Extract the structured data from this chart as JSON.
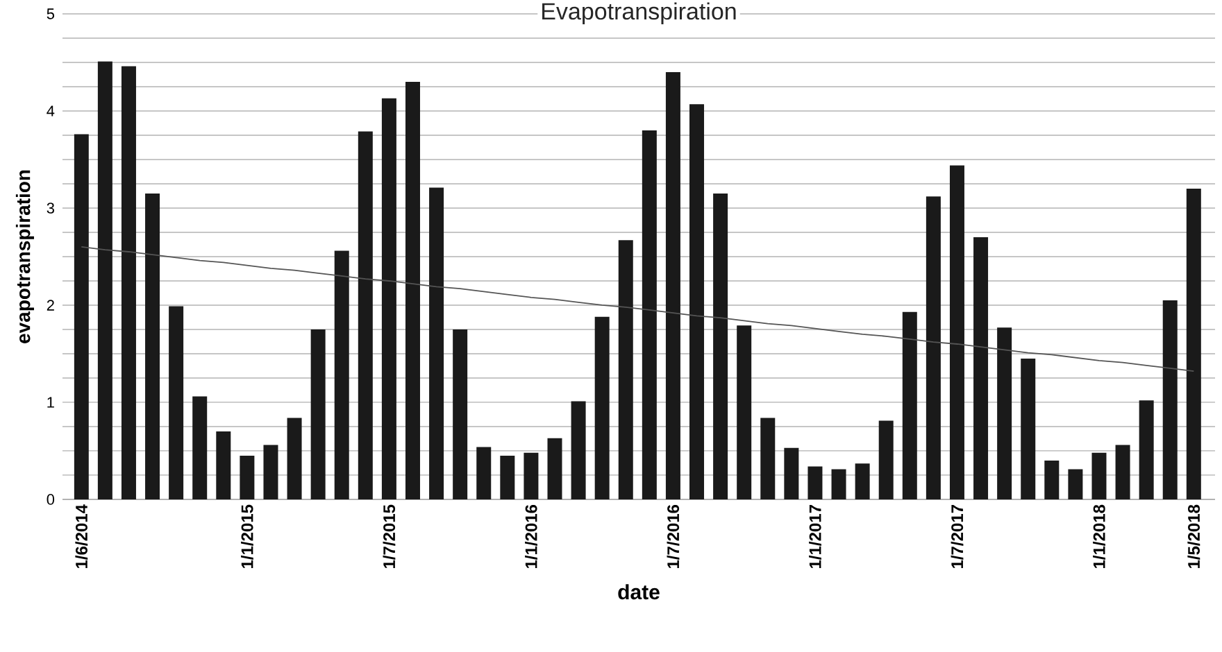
{
  "chart_data": {
    "type": "bar",
    "title": "Evapotranspiration",
    "xlabel": "date",
    "ylabel": "evapotranspiration",
    "categories": [
      "1/6/2014",
      null,
      null,
      null,
      null,
      null,
      null,
      "1/1/2015",
      null,
      null,
      null,
      null,
      null,
      "1/7/2015",
      null,
      null,
      null,
      null,
      null,
      "1/1/2016",
      null,
      null,
      null,
      null,
      null,
      "1/7/2016",
      null,
      null,
      null,
      null,
      null,
      "1/1/2017",
      null,
      null,
      null,
      null,
      null,
      "1/7/2017",
      null,
      null,
      null,
      null,
      null,
      "1/1/2018",
      null,
      null,
      null,
      "1/5/2018"
    ],
    "series": [
      {
        "color": "#1a1a1a",
        "values": [
          3.76,
          4.51,
          4.46,
          3.15,
          1.99,
          1.06,
          0.7,
          0.45,
          0.56,
          0.84,
          1.75,
          2.56,
          3.79,
          4.13,
          4.3,
          3.21,
          1.75,
          0.54,
          0.45,
          0.48,
          0.63,
          1.01,
          1.88,
          2.67,
          3.8,
          4.4,
          4.07,
          3.15,
          1.79,
          0.84,
          0.53,
          0.34,
          0.31,
          0.37,
          0.81,
          1.93,
          3.12,
          3.44,
          2.7,
          1.77,
          1.45,
          0.4,
          0.31,
          0.48,
          0.56,
          1.02,
          2.05,
          3.2
        ]
      },
      {
        "type": "line",
        "color": "#555555",
        "values": [
          2.6,
          2.57,
          2.55,
          2.52,
          2.49,
          2.46,
          2.44,
          2.41,
          2.38,
          2.36,
          2.33,
          2.3,
          2.27,
          2.25,
          2.22,
          2.19,
          2.17,
          2.14,
          2.11,
          2.08,
          2.06,
          2.03,
          2.0,
          1.98,
          1.95,
          1.92,
          1.89,
          1.87,
          1.84,
          1.81,
          1.79,
          1.76,
          1.73,
          1.7,
          1.68,
          1.65,
          1.62,
          1.6,
          1.57,
          1.54,
          1.51,
          1.49,
          1.46,
          1.43,
          1.41,
          1.38,
          1.35,
          1.32
        ]
      }
    ],
    "ylim": [
      0,
      5
    ],
    "yticks": [
      0,
      {
        "value": 0.25,
        "label": null
      },
      {
        "value": 0.5,
        "label": null
      },
      {
        "value": 0.75,
        "label": null
      },
      1,
      {
        "value": 1.25,
        "label": null
      },
      {
        "value": 1.5,
        "label": null
      },
      {
        "value": 1.75,
        "label": null
      },
      2,
      {
        "value": 2.25,
        "label": null
      },
      {
        "value": 2.5,
        "label": null
      },
      {
        "value": 2.75,
        "label": null
      },
      3,
      {
        "value": 3.25,
        "label": null
      },
      {
        "value": 3.5,
        "label": null
      },
      {
        "value": 3.75,
        "label": null
      },
      4,
      {
        "value": 4.25,
        "label": null
      },
      {
        "value": 4.5,
        "label": null
      },
      {
        "value": 4.75,
        "label": null
      },
      5
    ],
    "grid": "y"
  }
}
